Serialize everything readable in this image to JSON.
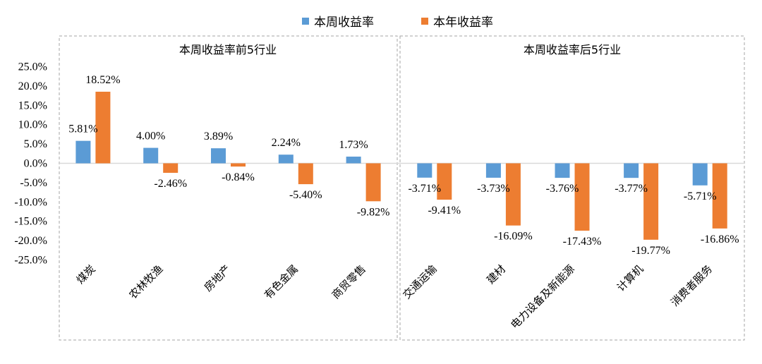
{
  "chart_data": {
    "type": "bar",
    "series": [
      {
        "name": "本周收益率",
        "color": "#5b9bd5"
      },
      {
        "name": "本年收益率",
        "color": "#ed7d31"
      }
    ],
    "yticks": [
      "25.0%",
      "20.0%",
      "15.0%",
      "10.0%",
      "5.0%",
      "0.0%",
      "-5.0%",
      "-10.0%",
      "-15.0%",
      "-20.0%",
      "-25.0%"
    ],
    "ylim": [
      -25,
      25
    ],
    "panels": [
      {
        "title": "本周收益率前5行业",
        "categories": [
          "煤炭",
          "农林牧渔",
          "房地产",
          "有色金属",
          "商贸零售"
        ],
        "weekly": [
          5.81,
          4.0,
          3.89,
          2.24,
          1.73
        ],
        "yearly": [
          18.52,
          -2.46,
          -0.84,
          -5.4,
          -9.82
        ],
        "weekly_labels": [
          "5.81%",
          "4.00%",
          "3.89%",
          "2.24%",
          "1.73%"
        ],
        "yearly_labels": [
          "18.52%",
          "-2.46%",
          "-0.84%",
          "-5.40%",
          "-9.82%"
        ]
      },
      {
        "title": "本周收益率后5行业",
        "categories": [
          "交通运输",
          "建材",
          "电力设备及新能源",
          "计算机",
          "消费者服务"
        ],
        "weekly": [
          -3.71,
          -3.73,
          -3.76,
          -3.77,
          -5.71
        ],
        "yearly": [
          -9.41,
          -16.09,
          -17.43,
          -19.77,
          -16.86
        ],
        "weekly_labels": [
          "-3.71%",
          "-3.73%",
          "-3.76%",
          "-3.77%",
          "-5.71%"
        ],
        "yearly_labels": [
          "-9.41%",
          "-16.09%",
          "-17.43%",
          "-19.77%",
          "-16.86%"
        ]
      }
    ],
    "legend_position": "top"
  }
}
